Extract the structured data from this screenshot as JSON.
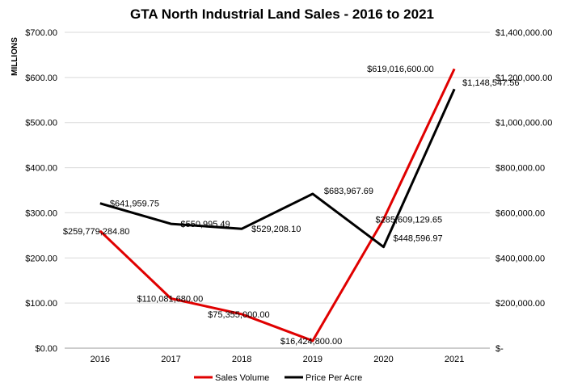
{
  "chart_data": {
    "type": "line",
    "title": "GTA North Industrial Land Sales - 2016 to 2021",
    "ylabel": "MILLIONS",
    "categories": [
      "2016",
      "2017",
      "2018",
      "2019",
      "2020",
      "2021"
    ],
    "y_left": {
      "ylim": [
        0,
        700
      ],
      "ticks": [
        0,
        100,
        200,
        300,
        400,
        500,
        600,
        700
      ],
      "tick_labels": [
        "$0.00",
        "$100.00",
        "$200.00",
        "$300.00",
        "$400.00",
        "$500.00",
        "$600.00",
        "$700.00"
      ]
    },
    "y_right": {
      "ylim": [
        0,
        1400000
      ],
      "ticks": [
        0,
        200000,
        400000,
        600000,
        800000,
        1000000,
        1200000,
        1400000
      ],
      "tick_labels": [
        "$-",
        "$200,000.00",
        "$400,000.00",
        "$600,000.00",
        "$800,000.00",
        "$1,000,000.00",
        "$1,200,000.00",
        "$1,400,000.00"
      ]
    },
    "grid": true,
    "legend_position": "bottom",
    "series": [
      {
        "name": "Sales Volume",
        "axis": "left",
        "color": "#e00000",
        "values": [
          259779284.8,
          110081680.0,
          75355000.0,
          16424800.0,
          285609129.65,
          619016600.0
        ],
        "labels": [
          "$259,779,284.80",
          "$110,081,680.00",
          "$75,355,000.00",
          "$16,424,800.00",
          "$285,609,129.65",
          "$619,016,600.00"
        ]
      },
      {
        "name": "Price Per Acre",
        "axis": "right",
        "color": "#000000",
        "values": [
          641959.75,
          550995.49,
          529208.1,
          683967.69,
          448596.97,
          1148547.56
        ],
        "labels": [
          "$641,959.75",
          "$550,995.49",
          "$529,208.10",
          "$683,967.69",
          "$448,596.97",
          "$1,148,547.56"
        ]
      }
    ]
  }
}
